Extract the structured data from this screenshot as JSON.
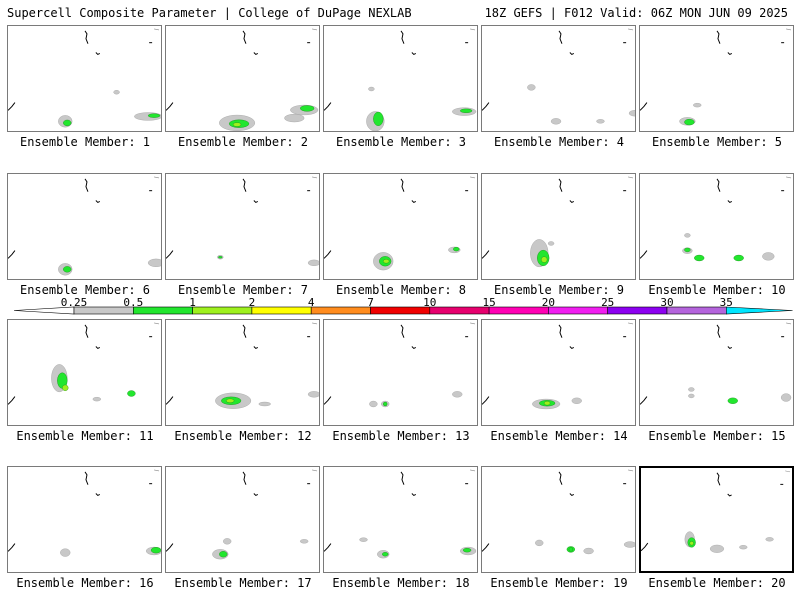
{
  "header": {
    "title_left": "Supercell Composite Parameter | College of DuPage NEXLAB",
    "title_right": "18Z GEFS | F012 Valid: 06Z MON JUN 09 2025"
  },
  "members": [
    {
      "label": "Ensemble Member: 1"
    },
    {
      "label": "Ensemble Member: 2"
    },
    {
      "label": "Ensemble Member: 3"
    },
    {
      "label": "Ensemble Member: 4"
    },
    {
      "label": "Ensemble Member: 5"
    },
    {
      "label": "Ensemble Member: 6"
    },
    {
      "label": "Ensemble Member: 7"
    },
    {
      "label": "Ensemble Member: 8"
    },
    {
      "label": "Ensemble Member: 9"
    },
    {
      "label": "Ensemble Member: 10"
    },
    {
      "label": "Ensemble Member: 11"
    },
    {
      "label": "Ensemble Member: 12"
    },
    {
      "label": "Ensemble Member: 13"
    },
    {
      "label": "Ensemble Member: 14"
    },
    {
      "label": "Ensemble Member: 15"
    },
    {
      "label": "Ensemble Member: 16"
    },
    {
      "label": "Ensemble Member: 17"
    },
    {
      "label": "Ensemble Member: 18"
    },
    {
      "label": "Ensemble Member: 19"
    },
    {
      "label": "Ensemble Member: 20"
    }
  ],
  "colorbar": {
    "levels": [
      "0.25",
      "0.5",
      "1",
      "2",
      "4",
      "7",
      "10",
      "15",
      "20",
      "25",
      "30",
      "35"
    ],
    "colors": [
      "#c8c8c8",
      "#22e62e",
      "#9ef01e",
      "#ffff00",
      "#ff8c1e",
      "#f00000",
      "#e6006e",
      "#ff00b4",
      "#f01ef0",
      "#8c00f0",
      "#b464dc",
      "#00e6ff"
    ]
  },
  "selected_member": "20"
}
